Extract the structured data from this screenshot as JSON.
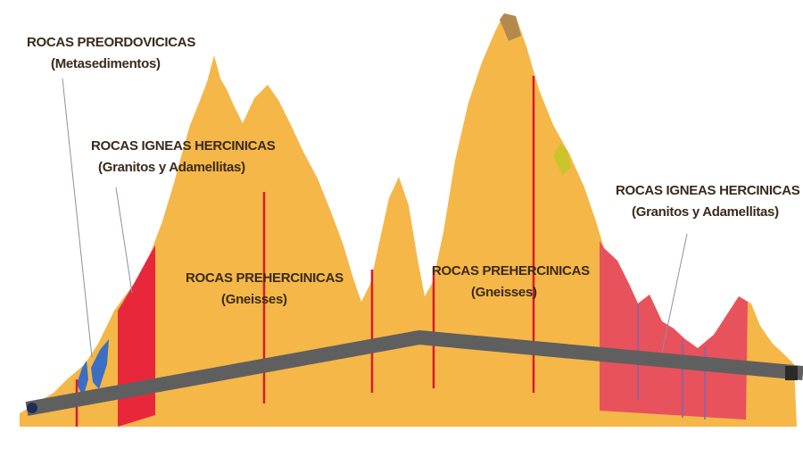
{
  "labels": {
    "preordo_title": "ROCAS PREORDOVICICAS",
    "preordo_sub": "(Metasedimentos)",
    "igneas_left_title": "ROCAS IGNEAS HERCINICAS",
    "igneas_left_sub": "(Granitos y Adamellitas)",
    "prehercinicas_left_title": "ROCAS PREHERCINICAS",
    "prehercinicas_left_sub": "(Gneisses)",
    "prehercinicas_right_title": "ROCAS PREHERCINICAS",
    "prehercinicas_right_sub": "(Gneisses)",
    "igneas_right_title": "ROCAS IGNEAS HERCINICAS",
    "igneas_right_sub": "(Granitos y Adamellitas)"
  },
  "colors": {
    "gneiss": "#f5b748",
    "granite": "#e8283a",
    "granite_light": "#e8525c",
    "metasediment": "#3a6fc4",
    "tunnel": "#5f5f5f",
    "fault": "#d81b2c",
    "olive": "#c9c42a",
    "peak": "#b38a4c",
    "label": "#3a2a1a"
  }
}
